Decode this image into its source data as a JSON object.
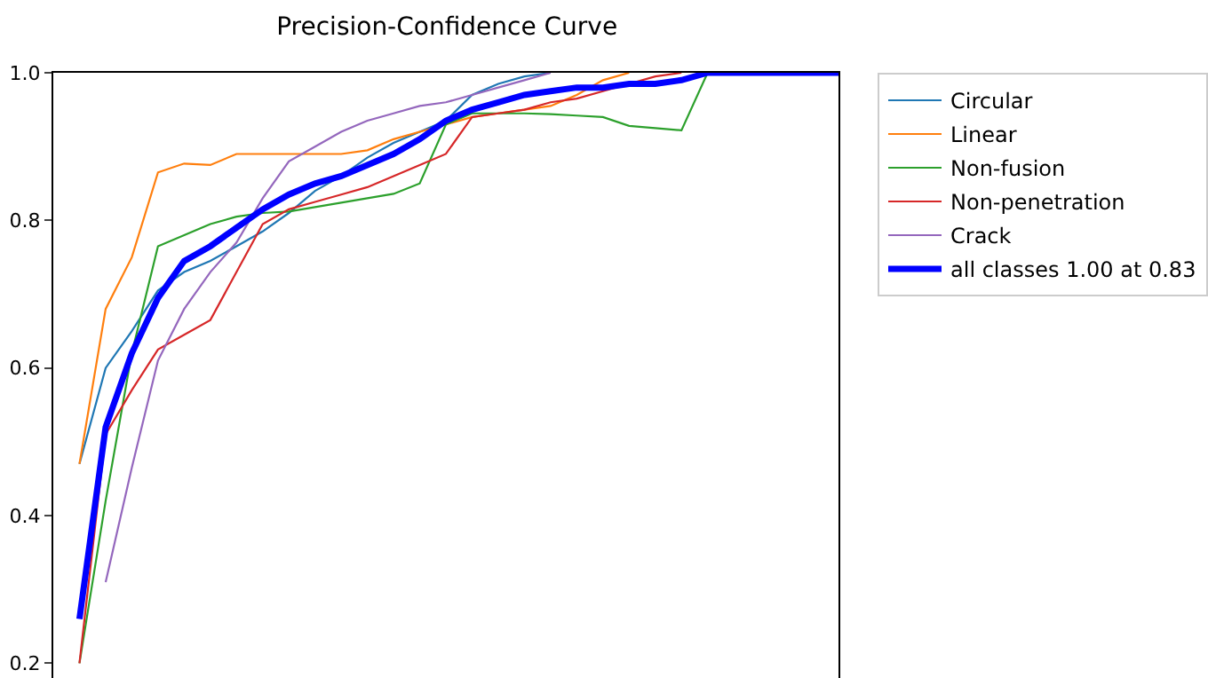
{
  "chart_data": {
    "type": "line",
    "title": "Precision-Confidence Curve",
    "categories": [
      null,
      null,
      null,
      null,
      null,
      null,
      null,
      null,
      null,
      null,
      null,
      null,
      null,
      null,
      null,
      null,
      null,
      null,
      null,
      null,
      null,
      null,
      null,
      null,
      null,
      null,
      null,
      null,
      null,
      null,
      null
    ],
    "series": [
      {
        "name": "Circular",
        "color": "#1f77b4",
        "values": [
          null,
          0.47,
          0.6,
          0.65,
          0.705,
          0.73,
          0.745,
          0.765,
          0.785,
          0.81,
          0.84,
          0.86,
          0.885,
          0.905,
          0.92,
          0.935,
          0.97,
          0.985,
          0.995,
          1.0,
          null,
          null,
          null,
          null,
          null,
          null,
          null,
          null,
          null,
          null,
          null
        ]
      },
      {
        "name": "Linear",
        "color": "#ff7f0e",
        "values": [
          null,
          0.47,
          0.68,
          0.75,
          0.865,
          0.877,
          0.875,
          0.89,
          0.89,
          0.89,
          0.89,
          0.89,
          0.895,
          0.91,
          0.92,
          0.93,
          0.94,
          0.945,
          0.95,
          0.955,
          0.97,
          0.99,
          1.0,
          null,
          null,
          null,
          null,
          null,
          null,
          null,
          null
        ]
      },
      {
        "name": "Non-fusion",
        "color": "#2ca02c",
        "values": [
          null,
          0.2,
          0.42,
          0.62,
          0.765,
          0.78,
          0.795,
          0.805,
          0.81,
          0.812,
          0.818,
          0.824,
          0.83,
          0.836,
          0.85,
          0.93,
          0.945,
          0.945,
          0.945,
          0.944,
          0.942,
          0.94,
          0.928,
          0.925,
          0.922,
          1.0,
          null,
          null,
          null,
          null,
          null
        ]
      },
      {
        "name": "Non-penetration",
        "color": "#d62728",
        "values": [
          null,
          0.2,
          0.51,
          0.57,
          0.625,
          0.645,
          0.665,
          0.73,
          0.795,
          0.815,
          0.825,
          0.835,
          0.845,
          0.86,
          0.875,
          0.89,
          0.94,
          0.945,
          0.95,
          0.96,
          0.965,
          0.975,
          0.985,
          0.995,
          1.0,
          null,
          null,
          null,
          null,
          null,
          null
        ]
      },
      {
        "name": "Crack",
        "color": "#9467bd",
        "values": [
          null,
          null,
          0.31,
          0.465,
          0.61,
          0.68,
          0.73,
          0.77,
          0.83,
          0.88,
          0.9,
          0.92,
          0.935,
          0.945,
          0.955,
          0.96,
          0.97,
          0.98,
          0.99,
          1.0,
          null,
          null,
          null,
          null,
          null,
          null,
          null,
          null,
          null,
          null,
          null
        ]
      },
      {
        "name": "all classes 1.00 at 0.83",
        "color": "#0000ff",
        "values": [
          null,
          0.26,
          0.52,
          0.62,
          0.695,
          0.745,
          0.765,
          0.79,
          0.815,
          0.835,
          0.85,
          0.86,
          0.875,
          0.89,
          0.91,
          0.935,
          0.95,
          0.96,
          0.97,
          0.975,
          0.98,
          0.98,
          0.985,
          0.985,
          0.99,
          1.0,
          1.0,
          1.0,
          1.0,
          1.0,
          1.0
        ]
      }
    ],
    "ylim": [
      0.18,
      1.0
    ],
    "yticks": [
      0.2,
      0.4,
      0.6,
      0.8,
      {
        "value": 1.0,
        "label": "1.0"
      }
    ],
    "tick_labels": "y",
    "legend": "top right",
    "marker": "none",
    "line_style": "solid"
  }
}
